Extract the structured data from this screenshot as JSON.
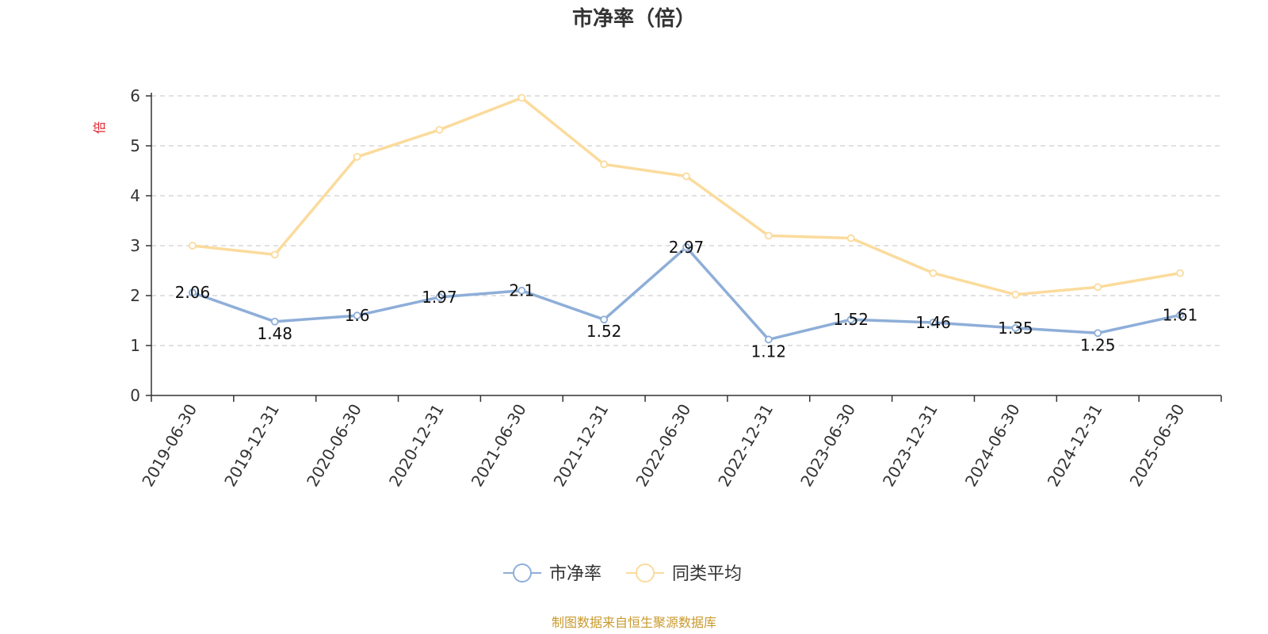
{
  "chart_data": {
    "type": "line",
    "title": "市净率（倍）",
    "ylabel": "倍",
    "ylim": [
      0,
      6
    ],
    "yticks": [
      "0",
      "1",
      "2",
      "3",
      "4",
      "5",
      "6"
    ],
    "grid": true,
    "legend_position": "bottom-center",
    "categories": [
      "2019-06-30",
      "2019-12-31",
      "2020-06-30",
      "2020-12-31",
      "2021-06-30",
      "2021-12-31",
      "2022-06-30",
      "2022-12-31",
      "2023-06-30",
      "2023-12-31",
      "2024-06-30",
      "2024-12-31",
      "2025-06-30"
    ],
    "series": [
      {
        "name": "市净率",
        "color": "#8eaed8",
        "values": [
          2.06,
          1.48,
          1.6,
          1.97,
          2.1,
          1.52,
          2.97,
          1.12,
          1.52,
          1.46,
          1.35,
          1.25,
          1.61
        ],
        "labels": [
          "2.06",
          "1.48",
          "1.6",
          "1.97",
          "2.1",
          "1.52",
          "2.97",
          "1.12",
          "1.52",
          "1.46",
          "1.35",
          "1.25",
          "1.61"
        ]
      },
      {
        "name": "同类平均",
        "color": "#fbdb9c",
        "values": [
          3.0,
          2.82,
          4.78,
          5.32,
          5.96,
          4.63,
          4.39,
          3.2,
          3.15,
          2.45,
          2.02,
          2.17,
          2.45
        ]
      }
    ]
  },
  "footer": {
    "source": "制图数据来自恒生聚源数据库"
  }
}
